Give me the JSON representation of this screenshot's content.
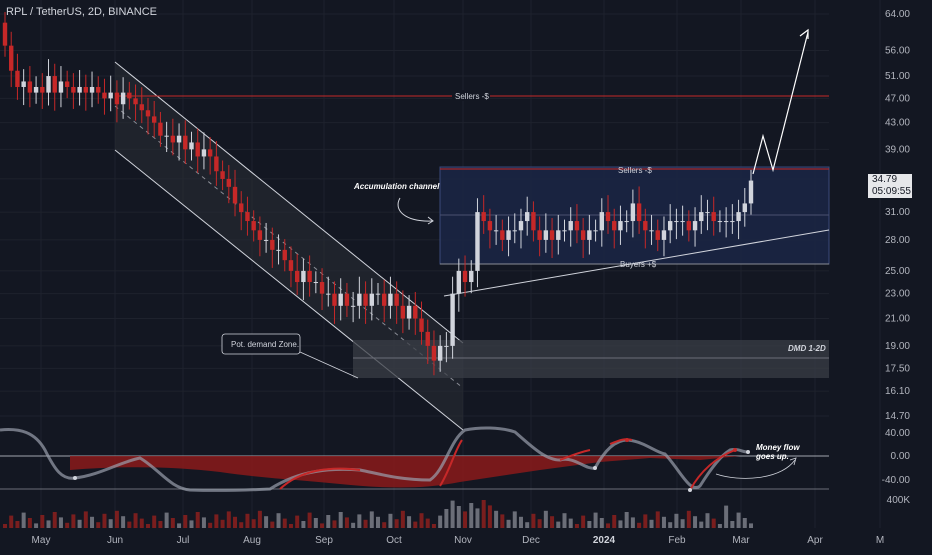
{
  "header": {
    "symbol": "RPL / TetherUS, 2D, BINANCE"
  },
  "price_tag": {
    "price": "34.79",
    "countdown": "05:09:55"
  },
  "colors": {
    "background": "#131722",
    "up": "#d1d4dc",
    "down": "#c62828",
    "resistance_line": "#c62828",
    "range_box": "#1b2544",
    "demand_zone": "#3a3d46",
    "text": "#b2b5be"
  },
  "chart_data": {
    "type": "candlestick",
    "title": "RPL / TetherUS, 2D, BINANCE",
    "y_scale": "log",
    "y_ticks": [
      "64.00",
      "56.00",
      "51.00",
      "47.00",
      "43.00",
      "39.00",
      "35.00",
      "31.00",
      "28.00",
      "25.00",
      "23.00",
      "21.00",
      "19.00",
      "17.50",
      "16.10",
      "14.70"
    ],
    "x_ticks": [
      "May",
      "Jun",
      "Jul",
      "Aug",
      "Sep",
      "Oct",
      "Nov",
      "Dec",
      "2024",
      "Feb",
      "Mar",
      "Apr",
      "M"
    ],
    "oscillator_ticks": [
      "40.00",
      "0.00",
      "-40.00"
    ],
    "volume_tick": "400K",
    "last_price": 34.79,
    "annotations": [
      {
        "text": "Sellers -$",
        "role": "horizontal_resistance",
        "price": 47.0
      },
      {
        "text": "Sellers -$",
        "role": "range_top",
        "price": 35.0
      },
      {
        "text": "Buyers +$",
        "role": "range_support"
      },
      {
        "text": "Accumulation channel",
        "role": "callout"
      },
      {
        "text": "Pot. demand Zone.",
        "role": "callout"
      },
      {
        "text": "DMD 1-2D",
        "role": "demand_zone",
        "price_range": [
          17.5,
          19.0
        ]
      },
      {
        "text": "Money flow goes up.",
        "role": "oscillator_note"
      }
    ],
    "closes": [
      57,
      52,
      49,
      50,
      48,
      49,
      48,
      51,
      48,
      50,
      49,
      48,
      49,
      48,
      49,
      48,
      47,
      48,
      46,
      48,
      47,
      46,
      45,
      44,
      43,
      41,
      41,
      40,
      41,
      39,
      40,
      38,
      39,
      38,
      36,
      35,
      34,
      32,
      31,
      30,
      29,
      28,
      28,
      27,
      27,
      26,
      25,
      24,
      25,
      24,
      24,
      23,
      23,
      22,
      23,
      22,
      22,
      23,
      22,
      23,
      23,
      22,
      23,
      22,
      21,
      22,
      21,
      20,
      19,
      18,
      19,
      19,
      23,
      25,
      24,
      25,
      31,
      30,
      29,
      29,
      28,
      29,
      29,
      30,
      31,
      29,
      28,
      29,
      28,
      29,
      29,
      30,
      29,
      28,
      29,
      29,
      31,
      30,
      29,
      30,
      30,
      32,
      30,
      29,
      29,
      28,
      29,
      30,
      30,
      30,
      29,
      30,
      31,
      31,
      30,
      30,
      30,
      30,
      31,
      32,
      34.79
    ]
  }
}
